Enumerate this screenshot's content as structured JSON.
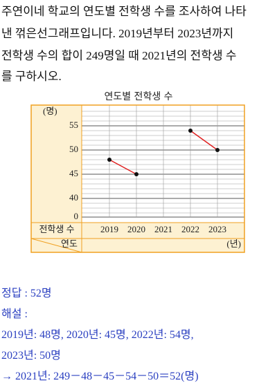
{
  "problem": {
    "lines": [
      "주연이네 학교의 연도별 전학생 수를 조사하여 나타",
      "낸 꺾은선그래프입니다. 2019년부터 2023년까지",
      "전학생 수의 합이 249명일 때 2021년의 전학생 수",
      "를 구하시오."
    ]
  },
  "chart_data": {
    "type": "line",
    "title": "연도별 전학생 수",
    "y_unit": "(명)",
    "row_label": "전학생 수",
    "x_label": "연도",
    "x_unit": "(년)",
    "categories": [
      "2019",
      "2020",
      "2021",
      "2022",
      "2023"
    ],
    "series": [
      {
        "name": "전학생 수",
        "color": "#e02020",
        "values": [
          48,
          45,
          null,
          54,
          50
        ]
      }
    ],
    "ylim": [
      0,
      58
    ],
    "yticks": [
      0,
      40,
      45,
      50,
      55
    ],
    "grid": true
  },
  "answer": {
    "lines": [
      "정답 : 52명",
      "해설 :",
      "2019년: 48명, 2020년: 45명, 2022년: 54명,",
      "2023년: 50명",
      "→ 2021년: 249－48－45－54－50＝52(명)"
    ]
  }
}
